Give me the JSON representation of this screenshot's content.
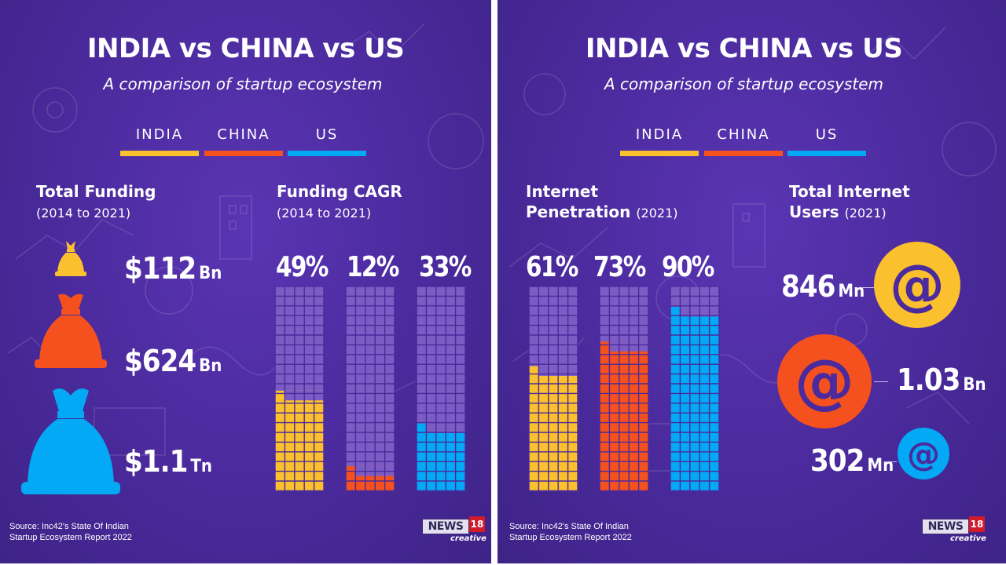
{
  "left": {
    "title": "INDIA vs CHINA vs US",
    "subtitle": "A comparison of startup ecosystem",
    "legend": [
      {
        "label": "INDIA",
        "color": "#fbc02d"
      },
      {
        "label": "CHINA",
        "color": "#f4511e"
      },
      {
        "label": "US",
        "color": "#03a9f4"
      }
    ],
    "funding": {
      "title": "Total Funding",
      "period": "(2014 to 2021)",
      "items": [
        {
          "country": "INDIA",
          "prefix": "$",
          "value": "112",
          "unit": "Bn",
          "color": "#fbc02d",
          "icon": "money-bag-icon"
        },
        {
          "country": "CHINA",
          "prefix": "$",
          "value": "624",
          "unit": "Bn",
          "color": "#f4511e",
          "icon": "money-bag-icon"
        },
        {
          "country": "US",
          "prefix": "$",
          "value": "1.1",
          "unit": "Tn",
          "color": "#03a9f4",
          "icon": "money-bag-icon"
        }
      ]
    },
    "cagr": {
      "title": "Funding CAGR",
      "period": "(2014 to 2021)"
    },
    "source": [
      "Source: Inc42's State Of Indian",
      "Startup Ecosystem Report 2022"
    ],
    "logo": {
      "news": "NEWS",
      "number": "18",
      "tagline": "creative"
    }
  },
  "right": {
    "title": "INDIA vs CHINA vs US",
    "subtitle": "A comparison of startup ecosystem",
    "legend": [
      {
        "label": "INDIA",
        "color": "#fbc02d"
      },
      {
        "label": "CHINA",
        "color": "#f4511e"
      },
      {
        "label": "US",
        "color": "#03a9f4"
      }
    ],
    "penetration": {
      "title": "Internet",
      "title2": "Penetration",
      "period": "(2021)"
    },
    "users": {
      "title": "Total Internet",
      "title2": "Users",
      "period": "(2021)",
      "items": [
        {
          "country": "INDIA",
          "value": "846",
          "unit": "Mn",
          "color": "#fbc02d",
          "icon": "at-sign-icon"
        },
        {
          "country": "CHINA",
          "value": "1.03",
          "unit": "Bn",
          "color": "#f4511e",
          "icon": "at-sign-icon"
        },
        {
          "country": "US",
          "value": "302",
          "unit": "Mn",
          "color": "#03a9f4",
          "icon": "at-sign-icon"
        }
      ]
    },
    "source": [
      "Source: Inc42's State Of Indian",
      "Startup Ecosystem Report 2022"
    ],
    "logo": {
      "news": "NEWS",
      "number": "18",
      "tagline": "creative"
    }
  },
  "chart_data": [
    {
      "type": "bar",
      "title": "Funding CAGR",
      "subtitle": "(2014 to 2021)",
      "categories": [
        "INDIA",
        "CHINA",
        "US"
      ],
      "values": [
        49,
        12,
        33
      ],
      "value_labels": [
        "49%",
        "12%",
        "33%"
      ],
      "colors": [
        "#fbc02d",
        "#f4511e",
        "#03a9f4"
      ],
      "ylim": [
        0,
        100
      ],
      "grid": true
    },
    {
      "type": "bar",
      "title": "Internet Penetration",
      "subtitle": "(2021)",
      "categories": [
        "INDIA",
        "CHINA",
        "US"
      ],
      "values": [
        61,
        73,
        90
      ],
      "value_labels": [
        "61%",
        "73%",
        "90%"
      ],
      "colors": [
        "#fbc02d",
        "#f4511e",
        "#03a9f4"
      ],
      "ylim": [
        0,
        100
      ],
      "grid": true
    }
  ]
}
